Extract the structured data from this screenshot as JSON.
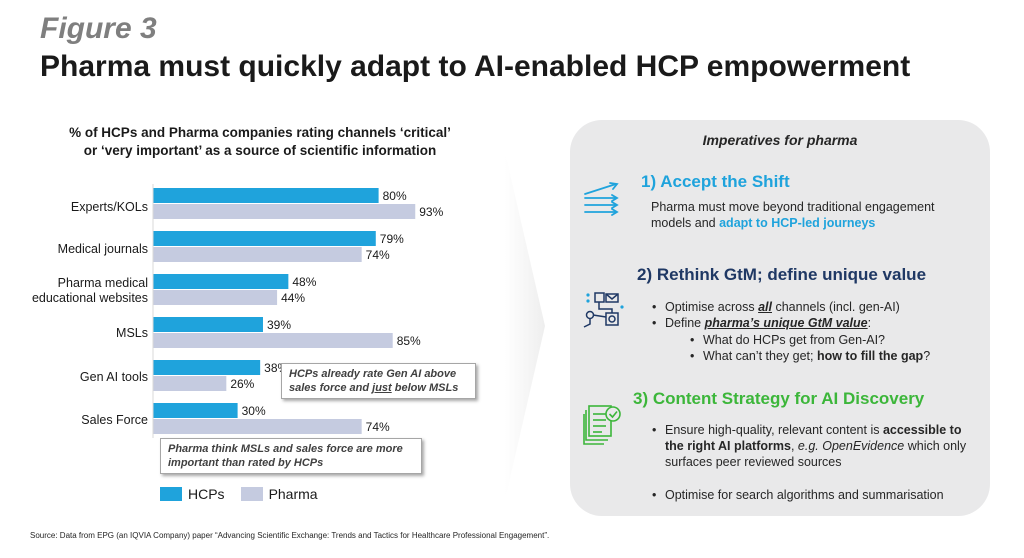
{
  "header": {
    "figure_label": "Figure 3",
    "title": "Pharma must quickly adapt to AI-enabled HCP empowerment"
  },
  "chart_data": {
    "type": "bar",
    "orientation": "horizontal",
    "title_line1": "% of HCPs and Pharma companies rating channels ‘critical’",
    "title_line2": "or ‘very important’ as a source of scientific information",
    "categories": [
      {
        "line1": "Experts/KOLs",
        "line2": ""
      },
      {
        "line1": "Medical journals",
        "line2": ""
      },
      {
        "line1": "Pharma medical",
        "line2": "educational websites"
      },
      {
        "line1": "MSLs",
        "line2": ""
      },
      {
        "line1": "Gen AI tools",
        "line2": ""
      },
      {
        "line1": "Sales Force",
        "line2": ""
      }
    ],
    "series": [
      {
        "name": "HCPs",
        "color": "#1fa3dc",
        "values": [
          80,
          79,
          48,
          39,
          38,
          30
        ],
        "labels": [
          "80%",
          "79%",
          "48%",
          "39%",
          "38%",
          "30%"
        ]
      },
      {
        "name": "Pharma",
        "color": "#c5cbe0",
        "values": [
          93,
          74,
          44,
          85,
          26,
          74
        ],
        "labels": [
          "93%",
          "74%",
          "44%",
          "85%",
          "26%",
          "74%"
        ]
      }
    ],
    "xlim": [
      0,
      100
    ],
    "unit": "%",
    "grid": false,
    "legend_position": "bottom-left",
    "annotations": {
      "callout1_pre": "HCPs already rate Gen AI above sales force and ",
      "callout1_emph": "just",
      "callout1_post": " below MSLs",
      "callout2": "Pharma think MSLs and sales force are more important than rated by HCPs"
    }
  },
  "panel": {
    "title": "Imperatives for pharma",
    "imp1": {
      "heading": "1) Accept the Shift",
      "text_pre": "Pharma must move beyond traditional engagement models and ",
      "text_accent": "adapt to HCP-led journeys"
    },
    "imp2": {
      "heading": "2) Rethink GtM; define unique value",
      "b1_pre": "Optimise across ",
      "b1_emph": "all",
      "b1_post": " channels (incl. gen-AI)",
      "b2_pre": "Define ",
      "b2_emph": "pharma’s unique GtM value",
      "b2_post": ":",
      "sub1": "What do HCPs get from Gen-AI?",
      "sub2_pre": "What can’t they get; ",
      "sub2_bold": "how to fill the gap",
      "sub2_post": "?"
    },
    "imp3": {
      "heading": "3) Content Strategy for AI Discovery",
      "b1_pre": "Ensure high-quality, relevant content is ",
      "b1_bold": "accessible to the right AI platforms",
      "b1_mid": ", ",
      "b1_it1": "e.g.",
      "b1_it2": "OpenEvidence",
      "b1_post": " which only surfaces peer reviewed sources",
      "b2": "Optimise for search algorithms and summarisation"
    }
  },
  "colors": {
    "hcp": "#1fa3dc",
    "pharma": "#c5cbe0",
    "green": "#3cb63a",
    "navy": "#1f3864"
  },
  "icons": [
    "trend-arrows-icon",
    "network-flow-icon",
    "document-check-icon"
  ],
  "source": "Source: Data from EPG (an IQVIA Company) paper “Advancing Scientific Exchange: Trends and Tactics for Healthcare Professional   Engagement”."
}
